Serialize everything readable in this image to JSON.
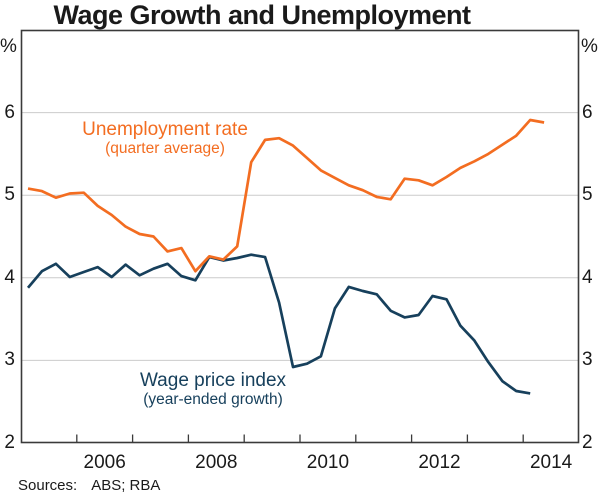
{
  "chart_data": {
    "type": "line",
    "title": "Wage Growth and Unemployment",
    "y_unit": "%",
    "ylim": [
      2,
      7
    ],
    "yticks": [
      2,
      3,
      4,
      5,
      6
    ],
    "xlim": [
      2005,
      2015
    ],
    "x_tick_years": [
      2006,
      2007,
      2008,
      2009,
      2010,
      2011,
      2012,
      2013,
      2014
    ],
    "x_label_years": [
      2006,
      2008,
      2010,
      2012,
      2014
    ],
    "grid": "horizontal",
    "gridline_color": "#cbcbcb",
    "axis_color": "#3a3a3a",
    "series": [
      {
        "name": "Unemployment rate",
        "sublabel": "(quarter average)",
        "color": "#f36d21",
        "x_start": 2005.125,
        "x_step": 0.25,
        "values": [
          5.08,
          5.05,
          4.97,
          5.02,
          5.03,
          4.87,
          4.76,
          4.62,
          4.53,
          4.5,
          4.32,
          4.36,
          4.08,
          4.26,
          4.22,
          4.38,
          5.4,
          5.67,
          5.69,
          5.6,
          5.45,
          5.3,
          5.21,
          5.12,
          5.06,
          4.98,
          4.95,
          5.2,
          5.18,
          5.12,
          5.22,
          5.33,
          5.41,
          5.5,
          5.61,
          5.72,
          5.91,
          5.88
        ]
      },
      {
        "name": "Wage price index",
        "sublabel": "(year-ended growth)",
        "color": "#17405c",
        "x_start": 2005.125,
        "x_step": 0.25,
        "values": [
          3.88,
          4.08,
          4.17,
          4.01,
          4.07,
          4.13,
          4.01,
          4.16,
          4.03,
          4.11,
          4.17,
          4.02,
          3.97,
          4.25,
          4.21,
          4.24,
          4.28,
          4.25,
          3.7,
          2.92,
          2.96,
          3.05,
          3.63,
          3.89,
          3.84,
          3.8,
          3.6,
          3.52,
          3.55,
          3.78,
          3.74,
          3.42,
          3.24,
          2.98,
          2.75,
          2.63,
          2.6
        ]
      }
    ]
  },
  "footer": {
    "sources_label": "Sources:",
    "sources_value": "ABS; RBA"
  }
}
